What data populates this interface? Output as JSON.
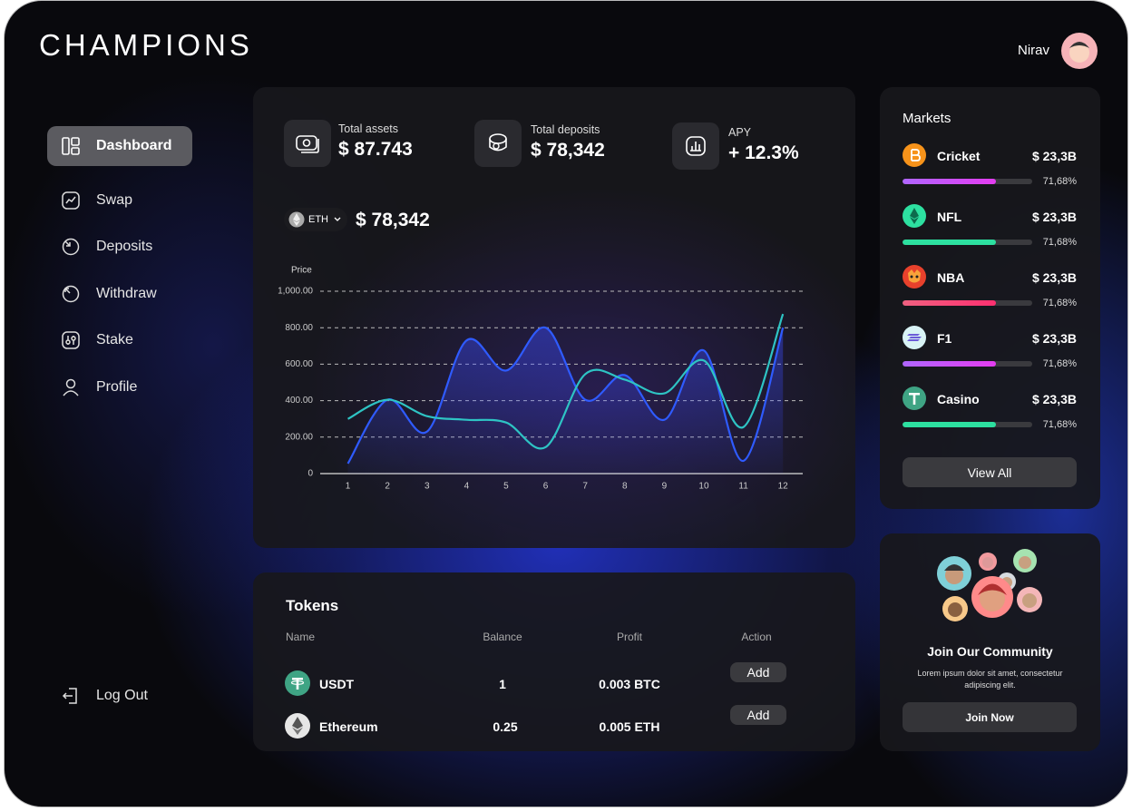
{
  "header": {
    "logo": "CHAMPIONS",
    "user": "Nirav"
  },
  "nav": {
    "items": [
      "Dashboard",
      "Swap",
      "Deposits",
      "Withdraw",
      "Stake",
      "Profile"
    ],
    "logout": "Log Out"
  },
  "stats": [
    {
      "label": "Total assets",
      "value": "$ 87.743"
    },
    {
      "label": "Total deposits",
      "value": "$ 78,342"
    },
    {
      "label": "APY",
      "value": "+ 12.3%"
    }
  ],
  "price_panel": {
    "token": "ETH",
    "price": "$ 78,342"
  },
  "chart_data": {
    "type": "line",
    "y_label": "Price",
    "x": [
      1,
      2,
      3,
      4,
      5,
      6,
      7,
      8,
      9,
      10,
      11,
      12
    ],
    "series": [
      {
        "color": "#2f5bff",
        "values": [
          55,
          405,
          230,
          730,
          565,
          800,
          405,
          540,
          295,
          675,
          70,
          800
        ]
      },
      {
        "color": "#2ec4c4",
        "values": [
          300,
          405,
          315,
          295,
          280,
          145,
          545,
          515,
          440,
          620,
          255,
          875
        ]
      }
    ],
    "xlim": [
      0.3,
      12.5
    ],
    "xticks": [
      1,
      2,
      3,
      4,
      5,
      6,
      7,
      8,
      9,
      10,
      11,
      12
    ],
    "ylim": [
      0,
      1000
    ],
    "yticks": [
      0,
      {
        "value": 200,
        "label": "200.00"
      },
      {
        "value": 400,
        "label": "400.00"
      },
      {
        "value": 600,
        "label": "600.00"
      },
      {
        "value": 800,
        "label": "800.00"
      },
      {
        "value": 1000,
        "label": "1,000.00"
      }
    ],
    "grid": true
  },
  "markets": {
    "title": "Markets",
    "items": [
      {
        "name": "Cricket",
        "value": "$ 23,3B",
        "percent": 71.68,
        "percent_label": "71,68%"
      },
      {
        "name": "NFL",
        "value": "$ 23,3B",
        "percent": 71.68,
        "percent_label": "71,68%"
      },
      {
        "name": "NBA",
        "value": "$ 23,3B",
        "percent": 71.68,
        "percent_label": "71,68%"
      },
      {
        "name": "F1",
        "value": "$ 23,3B",
        "percent": 71.68,
        "percent_label": "71,68%"
      },
      {
        "name": "Casino",
        "value": "$ 23,3B",
        "percent": 71.68,
        "percent_label": "71,68%"
      }
    ],
    "button": "View All"
  },
  "tokens": {
    "title": "Tokens",
    "columns": [
      "Name",
      "Balance",
      "Profit",
      "Action"
    ],
    "rows": [
      [
        "USDT",
        "1",
        "0.003 BTC",
        "Add"
      ],
      [
        "Ethereum",
        "0.25",
        "0.005 ETH",
        "Add"
      ]
    ]
  },
  "community": {
    "title": "Join Our Community",
    "text": "Lorem ipsum dolor sit amet, consectetur adipiscing elit.",
    "button": "Join Now"
  }
}
